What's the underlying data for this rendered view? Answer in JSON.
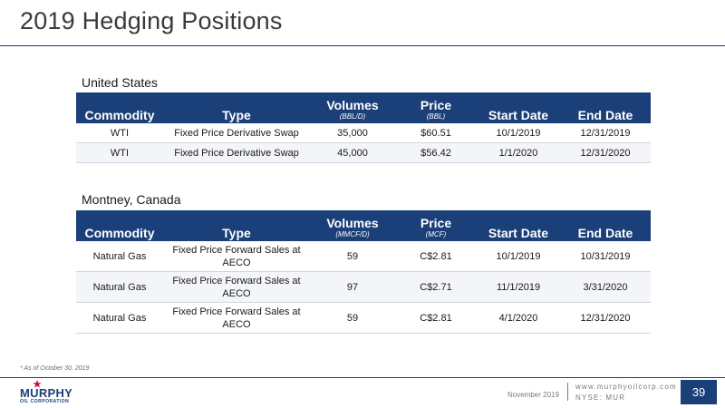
{
  "slide": {
    "title": "2019 Hedging Positions",
    "footnote": "* As of October 30, 2019",
    "page_number": "39"
  },
  "columns": {
    "commodity": "Commodity",
    "type": "Type",
    "volumes": "Volumes",
    "price": "Price",
    "start_date": "Start Date",
    "end_date": "End Date"
  },
  "us": {
    "label": "United States",
    "volume_unit": "(BBL/D)",
    "price_unit": "(BBL)",
    "rows": [
      {
        "commodity": "WTI",
        "type": "Fixed Price Derivative Swap",
        "volumes": "35,000",
        "price": "$60.51",
        "start": "10/1/2019",
        "end": "12/31/2019"
      },
      {
        "commodity": "WTI",
        "type": "Fixed Price Derivative Swap",
        "volumes": "45,000",
        "price": "$56.42",
        "start": "1/1/2020",
        "end": "12/31/2020"
      }
    ]
  },
  "canada": {
    "label": "Montney, Canada",
    "volume_unit": "(MMCF/D)",
    "price_unit": "(MCF)",
    "rows": [
      {
        "commodity": "Natural Gas",
        "type": "Fixed Price Forward Sales at AECO",
        "volumes": "59",
        "price": "C$2.81",
        "start": "10/1/2019",
        "end": "10/31/2019"
      },
      {
        "commodity": "Natural Gas",
        "type": "Fixed Price Forward Sales at AECO",
        "volumes": "97",
        "price": "C$2.71",
        "start": "11/1/2019",
        "end": "3/31/2020"
      },
      {
        "commodity": "Natural Gas",
        "type": "Fixed Price Forward Sales at AECO",
        "volumes": "59",
        "price": "C$2.81",
        "start": "4/1/2020",
        "end": "12/31/2020"
      }
    ]
  },
  "footer": {
    "logo_text": "MURPHY",
    "logo_subtext": "OIL CORPORATION",
    "date": "November 2019",
    "website": "www.murphyoilcorp.com",
    "ticker": "NYSE: MUR"
  },
  "colors": {
    "brand_navy": "#1b3f78",
    "logo_red": "#c8102e"
  },
  "icons": {
    "logo_mark": "murphy-star-logo-icon"
  }
}
